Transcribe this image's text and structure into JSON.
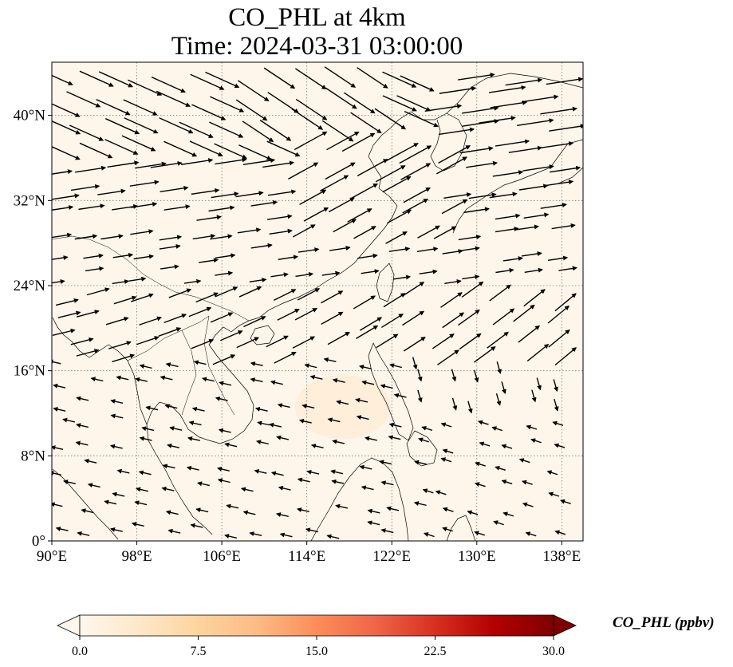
{
  "title": {
    "line1": "CO_PHL at 4km",
    "line2": "Time: 2024-03-31 03:00:00"
  },
  "map": {
    "variable": "CO_PHL",
    "level": "4km",
    "time": "2024-03-31 03:00:00",
    "lon_range": [
      90,
      140
    ],
    "lat_range": [
      0,
      45
    ],
    "lon_ticks": [
      90,
      98,
      106,
      114,
      122,
      130,
      138
    ],
    "lat_ticks": [
      0,
      8,
      16,
      24,
      32,
      40
    ],
    "lon_tick_labels": [
      "90°E",
      "98°E",
      "106°E",
      "114°E",
      "122°E",
      "130°E",
      "138°E"
    ],
    "lat_tick_labels": [
      "0°",
      "8°N",
      "16°N",
      "24°N",
      "32°N",
      "40°N"
    ],
    "gridlines": true,
    "background_color": "#fef6ea",
    "coastline_color": "#000000",
    "vector_color": "#000000"
  },
  "colorbar": {
    "label": "CO_PHL (ppbv)",
    "min": 0.0,
    "max": 30.0,
    "ticks": [
      0.0,
      7.5,
      15.0,
      22.5,
      30.0
    ],
    "tick_labels": [
      "0.0",
      "7.5",
      "15.0",
      "22.5",
      "30.0"
    ],
    "colormap": "OrRd",
    "colors": [
      "#fff7ec",
      "#fee8c8",
      "#fdd49e",
      "#fdbb84",
      "#fc8d59",
      "#ef6548",
      "#d7301f",
      "#b30000",
      "#7f0000"
    ],
    "extend": "both"
  }
}
